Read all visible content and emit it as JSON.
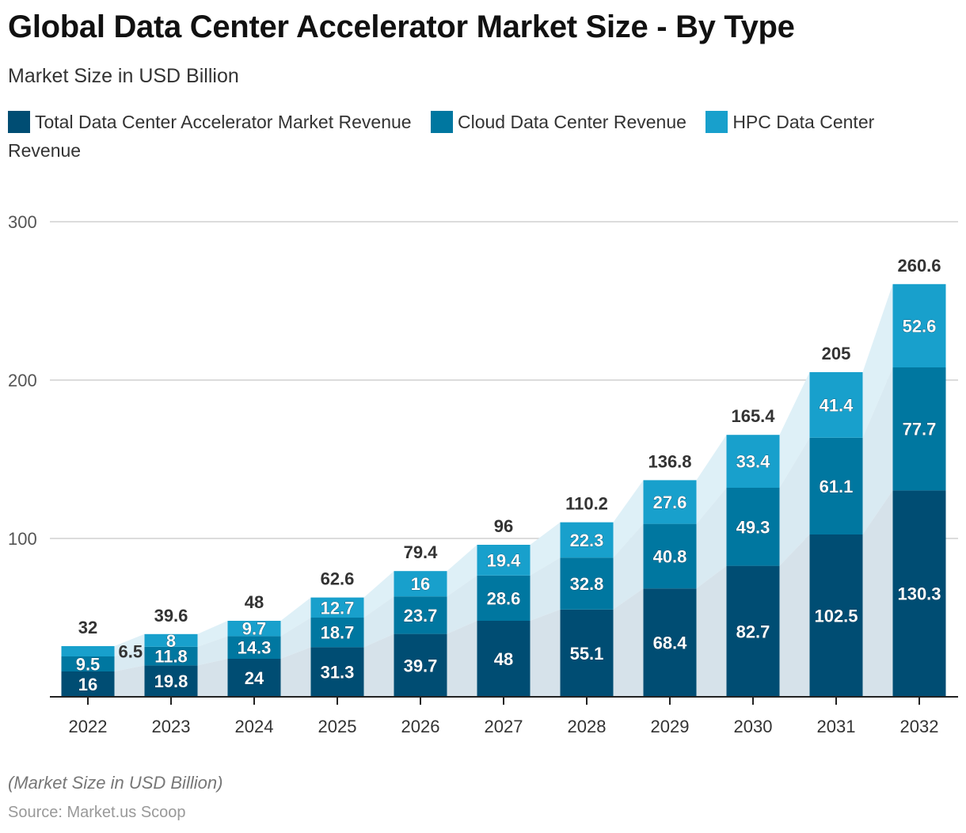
{
  "title": "Global Data Center Accelerator Market Size - By Type",
  "subtitle": "Market Size in USD Billion",
  "note": "(Market Size in USD Billion)",
  "source": "Source: Market.us Scoop",
  "chart_data": {
    "type": "bar",
    "stacked": true,
    "categories": [
      "2022",
      "2023",
      "2024",
      "2025",
      "2026",
      "2027",
      "2028",
      "2029",
      "2030",
      "2031",
      "2032"
    ],
    "series": [
      {
        "name": "Total Data Center Accelerator Market Revenue",
        "color": "#004d73",
        "values": [
          16,
          19.8,
          24,
          31.3,
          39.7,
          48,
          55.1,
          68.4,
          82.7,
          102.5,
          130.3
        ]
      },
      {
        "name": "Cloud Data Center Revenue",
        "color": "#0077a0",
        "values": [
          9.5,
          11.8,
          14.3,
          18.7,
          23.7,
          28.6,
          32.8,
          40.8,
          49.3,
          61.1,
          77.7
        ]
      },
      {
        "name": "HPC Data Center Revenue",
        "color": "#18a0cc",
        "values": [
          6.5,
          8,
          9.7,
          12.7,
          16,
          19.4,
          22.3,
          27.6,
          33.4,
          41.4,
          52.6
        ]
      }
    ],
    "totals": [
      "32",
      "39.6",
      "48",
      "62.6",
      "79.4",
      "96",
      "110.2",
      "136.8",
      "165.4",
      "205",
      "260.6"
    ],
    "ylim": [
      0,
      300
    ],
    "yticks": [
      "100",
      "200",
      "300"
    ],
    "grid": true,
    "legend": "top-left"
  }
}
